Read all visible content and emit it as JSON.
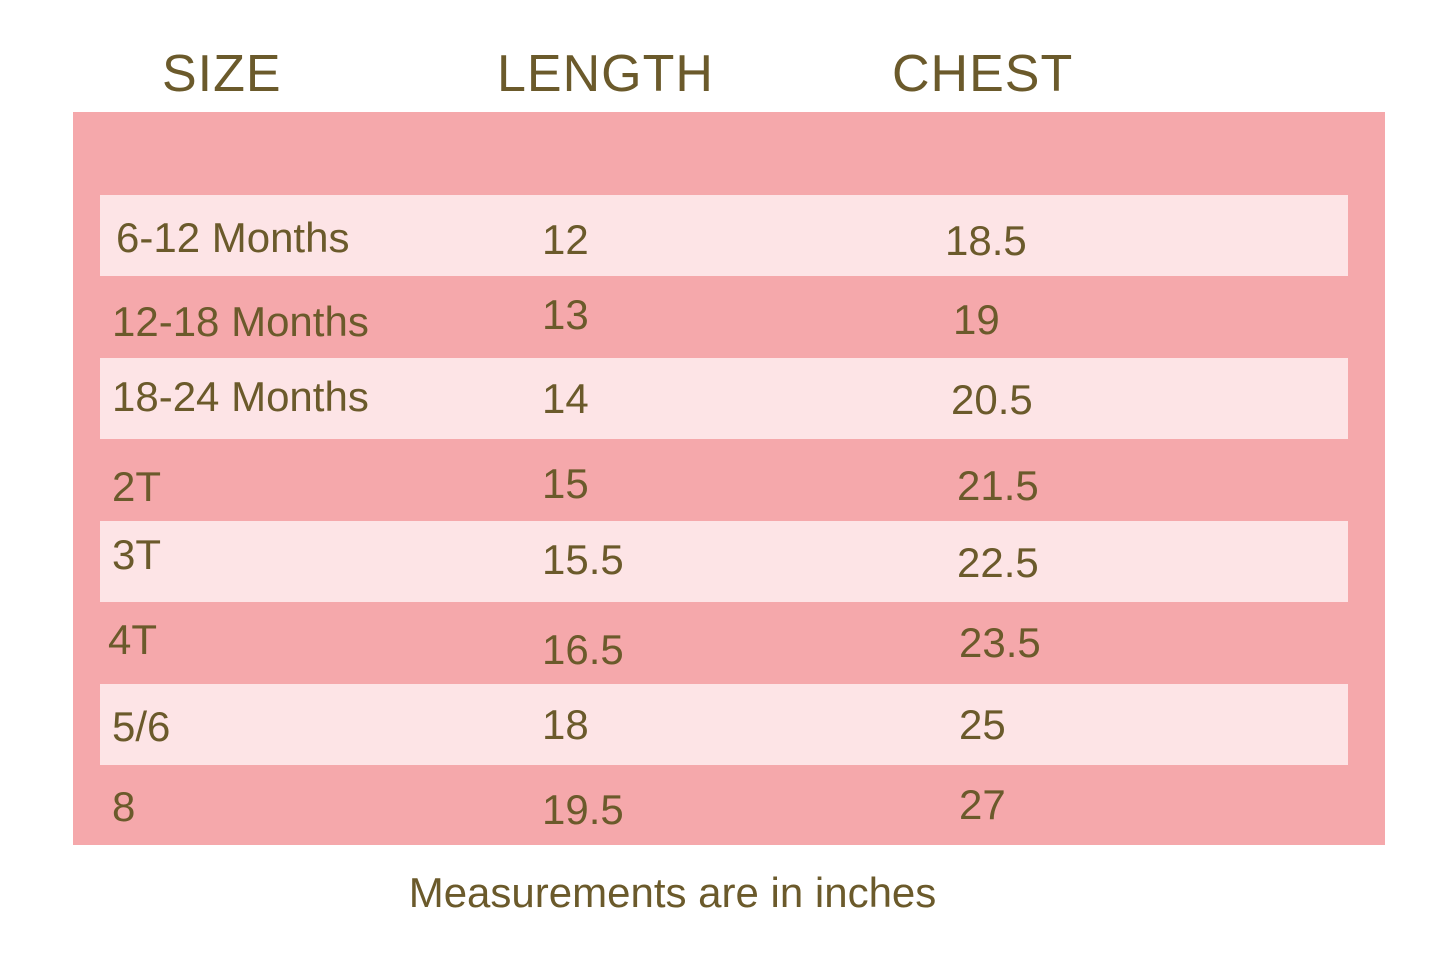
{
  "table": {
    "columns": [
      "SIZE",
      "LENGTH",
      "CHEST"
    ],
    "rows": [
      [
        "6-12 Months",
        "12",
        "18.5"
      ],
      [
        "12-18 Months",
        "13",
        "19"
      ],
      [
        "18-24 Months",
        "14",
        "20.5"
      ],
      [
        "2T",
        "15",
        "21.5"
      ],
      [
        "3T",
        "15.5",
        "22.5"
      ],
      [
        "4T",
        "16.5",
        "23.5"
      ],
      [
        "5/6",
        "18",
        "25"
      ],
      [
        "8",
        "19.5",
        "27"
      ]
    ]
  },
  "footnote": "Measurements are in inches"
}
